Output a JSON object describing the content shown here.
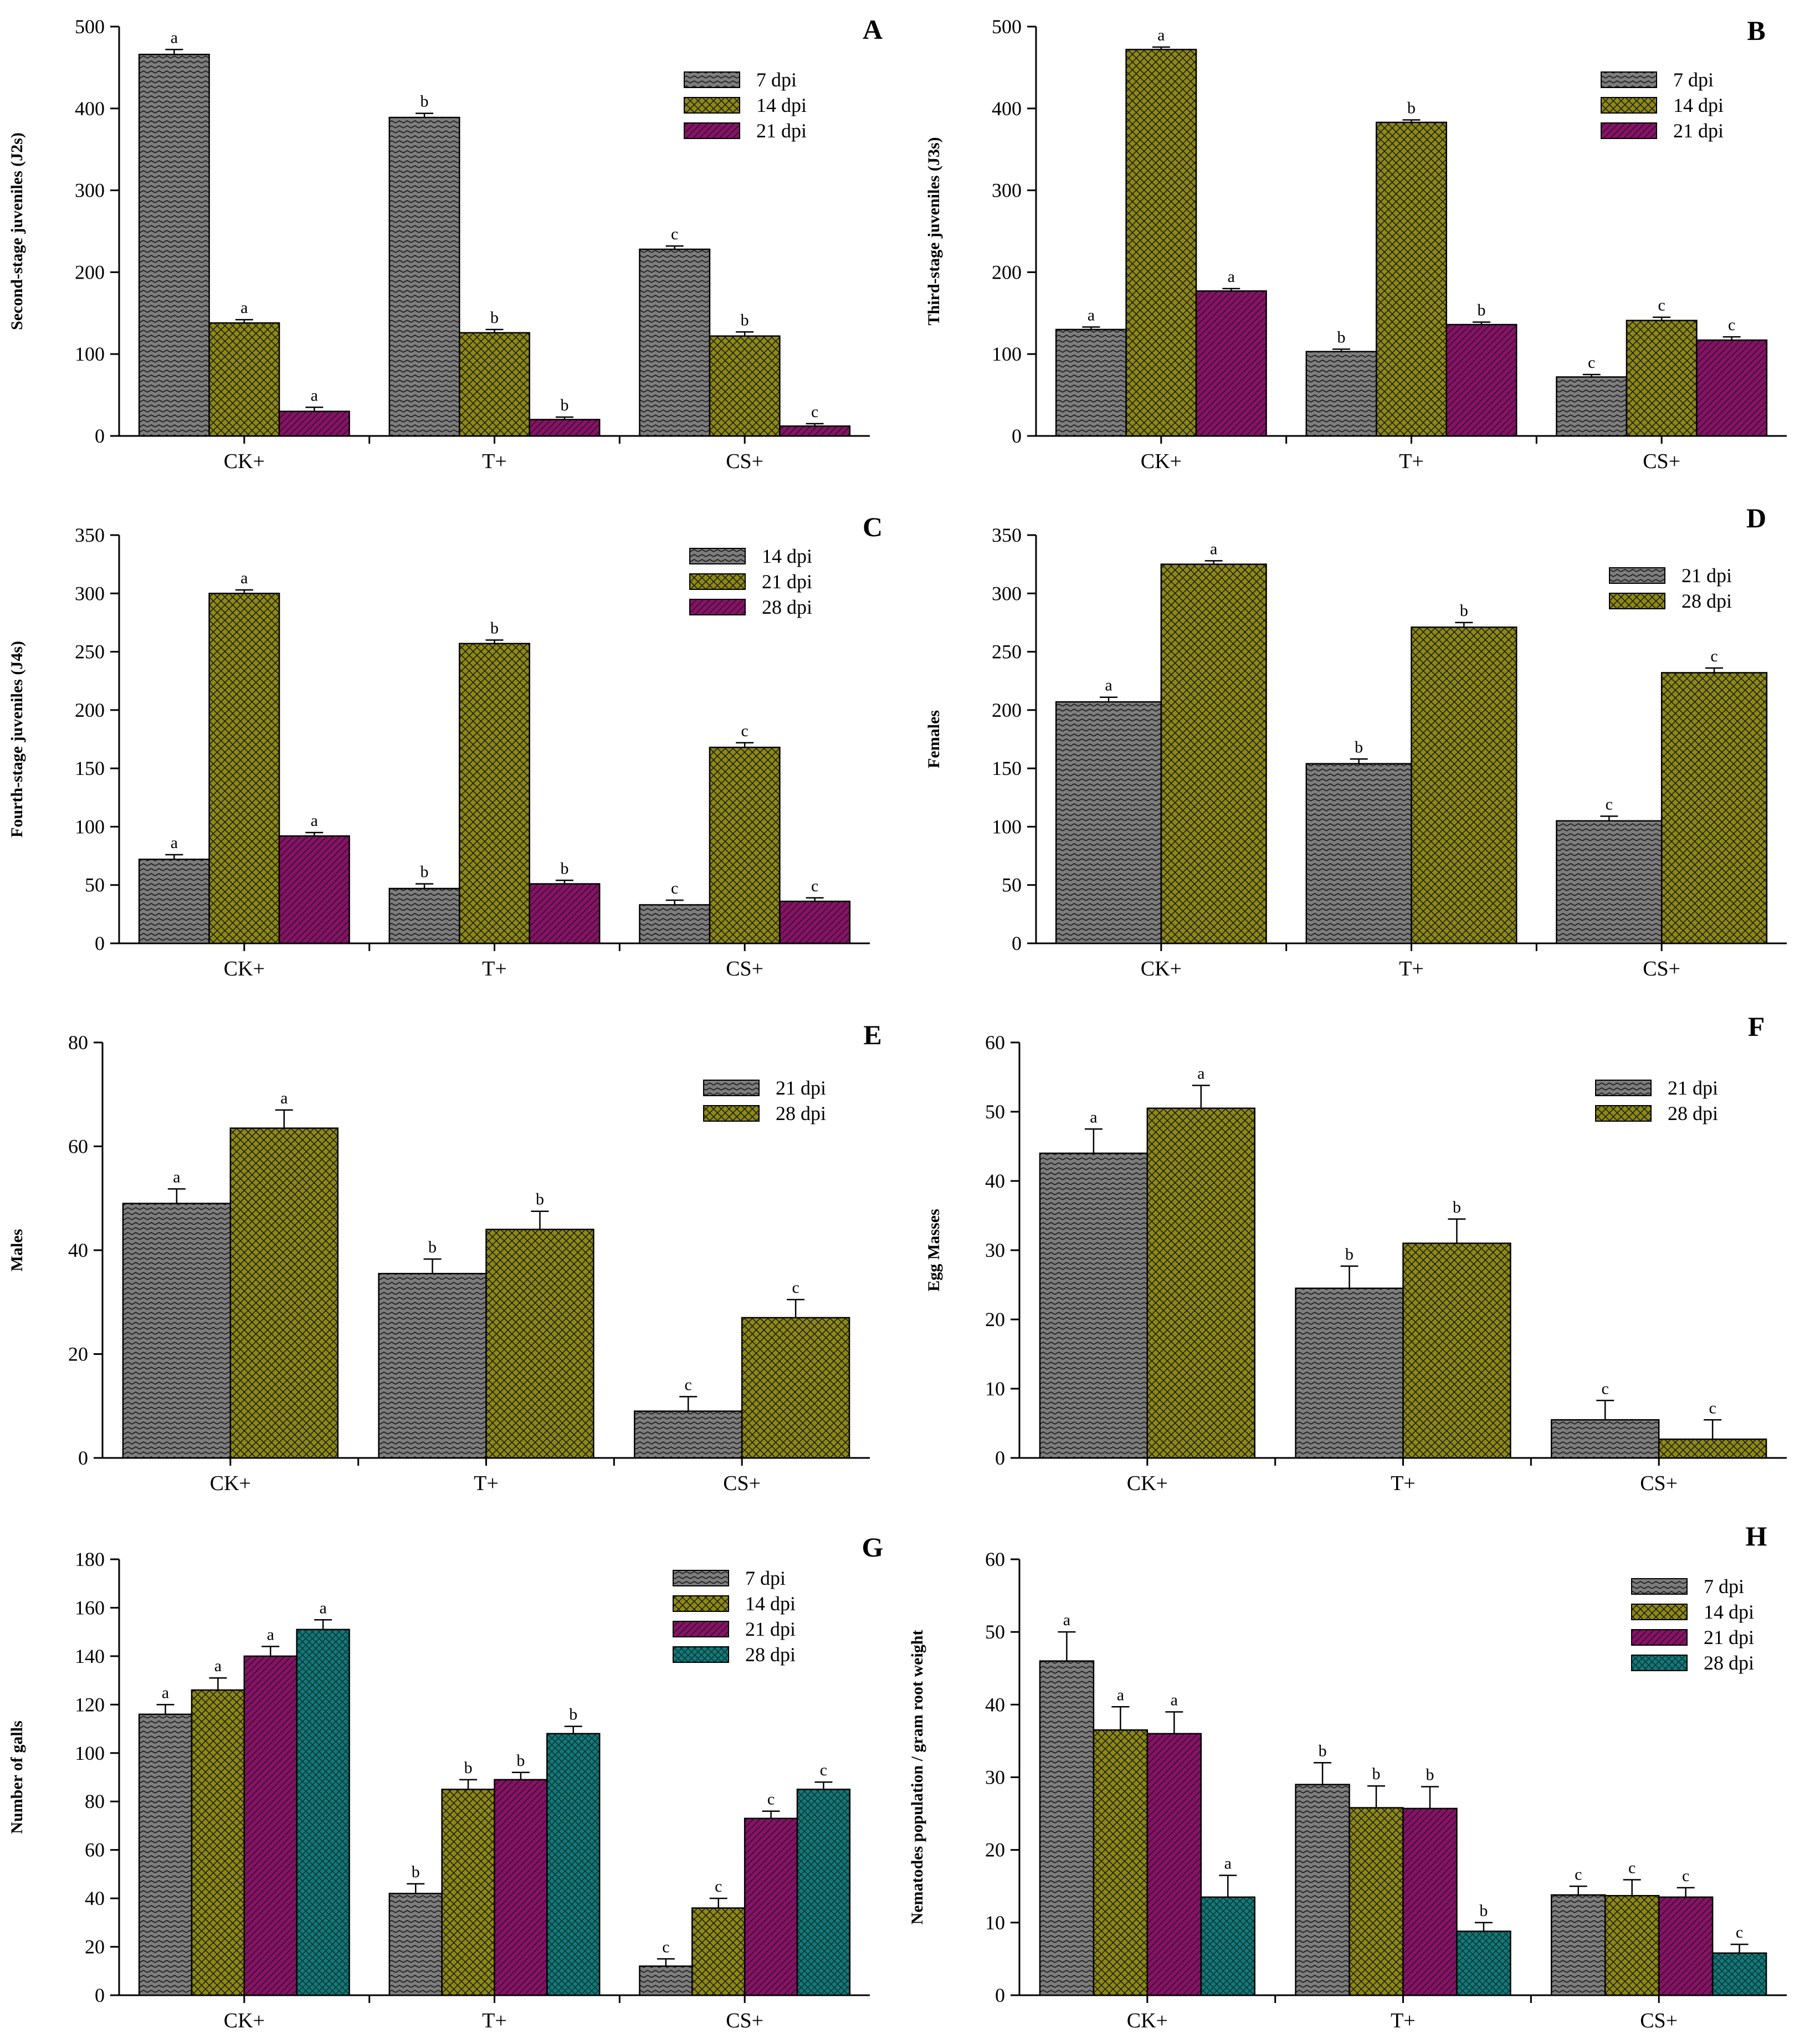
{
  "colors": {
    "gray_fill": "#7d7d7d",
    "olive_fill": "#8e8a12",
    "magenta_fill": "#8a1068",
    "teal_fill": "#117a7a",
    "stroke": "#000000"
  },
  "chart_data": [
    {
      "type": "bar",
      "panel_label": "A",
      "ylabel": "Second-stage juveniles (J2s)",
      "ylim": [
        0,
        500
      ],
      "yticks": [
        "0",
        "100",
        "200",
        "300",
        "400",
        "500"
      ],
      "categories": [
        "CK+",
        "T+",
        "CS+"
      ],
      "legend_position": "top-right",
      "series": [
        {
          "name": "7 dpi",
          "pattern": "zigzag",
          "color": "gray",
          "values": [
            466,
            389,
            228
          ],
          "errors": [
            6,
            5,
            4
          ],
          "letters": [
            "a",
            "b",
            "c"
          ]
        },
        {
          "name": "14 dpi",
          "pattern": "crosshatch",
          "color": "olive",
          "values": [
            138,
            126,
            122
          ],
          "errors": [
            4,
            4,
            5
          ],
          "letters": [
            "a",
            "b",
            "b"
          ]
        },
        {
          "name": "21 dpi",
          "pattern": "diagonal",
          "color": "magenta",
          "values": [
            30,
            20,
            12
          ],
          "errors": [
            5,
            3,
            3
          ],
          "letters": [
            "a",
            "b",
            "c"
          ]
        }
      ]
    },
    {
      "type": "bar",
      "panel_label": "B",
      "ylabel": "Third-stage juveniles (J3s)",
      "ylim": [
        0,
        500
      ],
      "yticks": [
        "0",
        "100",
        "200",
        "300",
        "400",
        "500"
      ],
      "categories": [
        "CK+",
        "T+",
        "CS+"
      ],
      "legend_position": "top-right",
      "series": [
        {
          "name": "7 dpi",
          "pattern": "zigzag",
          "color": "gray",
          "values": [
            130,
            103,
            72
          ],
          "errors": [
            3,
            3,
            3
          ],
          "letters": [
            "a",
            "b",
            "c"
          ]
        },
        {
          "name": "14 dpi",
          "pattern": "crosshatch",
          "color": "olive",
          "values": [
            472,
            383,
            141
          ],
          "errors": [
            3,
            3,
            4
          ],
          "letters": [
            "a",
            "b",
            "c"
          ]
        },
        {
          "name": "21 dpi",
          "pattern": "diagonal",
          "color": "magenta",
          "values": [
            177,
            136,
            117
          ],
          "errors": [
            3,
            3,
            4
          ],
          "letters": [
            "a",
            "b",
            "c"
          ]
        }
      ]
    },
    {
      "type": "bar",
      "panel_label": "C",
      "ylabel": "Fourth-stage juveniles (J4s)",
      "ylim": [
        0,
        350
      ],
      "yticks": [
        "0",
        "50",
        "100",
        "150",
        "200",
        "250",
        "300",
        "350"
      ],
      "categories": [
        "CK+",
        "T+",
        "CS+"
      ],
      "legend_position": "top-right",
      "series": [
        {
          "name": "14 dpi",
          "pattern": "zigzag",
          "color": "gray",
          "values": [
            72,
            47,
            33
          ],
          "errors": [
            4,
            4,
            4
          ],
          "letters": [
            "a",
            "b",
            "c"
          ]
        },
        {
          "name": "21 dpi",
          "pattern": "crosshatch",
          "color": "olive",
          "values": [
            300,
            257,
            168
          ],
          "errors": [
            3,
            3,
            4
          ],
          "letters": [
            "a",
            "b",
            "c"
          ]
        },
        {
          "name": "28 dpi",
          "pattern": "diagonal",
          "color": "magenta",
          "values": [
            92,
            51,
            36
          ],
          "errors": [
            3,
            3,
            3
          ],
          "letters": [
            "a",
            "b",
            "c"
          ]
        }
      ]
    },
    {
      "type": "bar",
      "panel_label": "D",
      "ylabel": "Females",
      "ylim": [
        0,
        350
      ],
      "yticks": [
        "0",
        "50",
        "100",
        "150",
        "200",
        "250",
        "300",
        "350"
      ],
      "categories": [
        "CK+",
        "T+",
        "CS+"
      ],
      "legend_position": "top-right",
      "series": [
        {
          "name": "21 dpi",
          "pattern": "zigzag",
          "color": "gray",
          "values": [
            207,
            154,
            105
          ],
          "errors": [
            4,
            4,
            4
          ],
          "letters": [
            "a",
            "b",
            "c"
          ]
        },
        {
          "name": "28 dpi",
          "pattern": "crosshatch",
          "color": "olive",
          "values": [
            325,
            271,
            232
          ],
          "errors": [
            3,
            4,
            4
          ],
          "letters": [
            "a",
            "b",
            "c"
          ]
        }
      ]
    },
    {
      "type": "bar",
      "panel_label": "E",
      "ylabel": "Males",
      "ylim": [
        0,
        80
      ],
      "yticks": [
        "0",
        "20",
        "40",
        "60",
        "80"
      ],
      "categories": [
        "CK+",
        "T+",
        "CS+"
      ],
      "legend_position": "top-right",
      "series": [
        {
          "name": "21 dpi",
          "pattern": "zigzag",
          "color": "gray",
          "values": [
            49,
            35.5,
            9
          ],
          "errors": [
            2.8,
            2.8,
            2.8
          ],
          "letters": [
            "a",
            "b",
            "c"
          ]
        },
        {
          "name": "28 dpi",
          "pattern": "crosshatch",
          "color": "olive",
          "values": [
            63.5,
            44,
            27
          ],
          "errors": [
            3.5,
            3.5,
            3.5
          ],
          "letters": [
            "a",
            "b",
            "c"
          ]
        }
      ]
    },
    {
      "type": "bar",
      "panel_label": "F",
      "ylabel": "Egg Masses",
      "ylim": [
        0,
        60
      ],
      "yticks": [
        "0",
        "10",
        "20",
        "30",
        "40",
        "50",
        "60"
      ],
      "categories": [
        "CK+",
        "T+",
        "CS+"
      ],
      "legend_position": "top-right",
      "series": [
        {
          "name": "21 dpi",
          "pattern": "zigzag",
          "color": "gray",
          "values": [
            44,
            24.5,
            5.5
          ],
          "errors": [
            3.5,
            3.2,
            2.8
          ],
          "letters": [
            "a",
            "b",
            "c"
          ]
        },
        {
          "name": "28 dpi",
          "pattern": "crosshatch",
          "color": "olive",
          "values": [
            50.5,
            31,
            2.7
          ],
          "errors": [
            3.3,
            3.5,
            2.8
          ],
          "letters": [
            "a",
            "b",
            "c"
          ]
        }
      ]
    },
    {
      "type": "bar",
      "panel_label": "G",
      "ylabel": "Number of galls",
      "ylim": [
        0,
        180
      ],
      "yticks": [
        "0",
        "20",
        "40",
        "60",
        "80",
        "100",
        "120",
        "140",
        "160",
        "180"
      ],
      "categories": [
        "CK+",
        "T+",
        "CS+"
      ],
      "legend_position": "top-right",
      "series": [
        {
          "name": "7 dpi",
          "pattern": "zigzag",
          "color": "gray",
          "values": [
            116,
            42,
            12
          ],
          "errors": [
            4,
            4,
            3
          ],
          "letters": [
            "a",
            "b",
            "c"
          ]
        },
        {
          "name": "14 dpi",
          "pattern": "crosshatch",
          "color": "olive",
          "values": [
            126,
            85,
            36
          ],
          "errors": [
            5,
            4,
            4
          ],
          "letters": [
            "a",
            "b",
            "c"
          ]
        },
        {
          "name": "21 dpi",
          "pattern": "diagonal",
          "color": "magenta",
          "values": [
            140,
            89,
            73
          ],
          "errors": [
            4,
            3,
            3
          ],
          "letters": [
            "a",
            "b",
            "c"
          ]
        },
        {
          "name": "28 dpi",
          "pattern": "teal",
          "color": "teal",
          "values": [
            151,
            108,
            85
          ],
          "errors": [
            4,
            3,
            3
          ],
          "letters": [
            "a",
            "b",
            "c"
          ]
        }
      ]
    },
    {
      "type": "bar",
      "panel_label": "H",
      "ylabel": "Nematodes population / gram root weight",
      "ylim": [
        0,
        60
      ],
      "yticks": [
        "0",
        "10",
        "20",
        "30",
        "40",
        "50",
        "60"
      ],
      "categories": [
        "CK+",
        "T+",
        "CS+"
      ],
      "legend_position": "top-right",
      "series": [
        {
          "name": "7 dpi",
          "pattern": "zigzag",
          "color": "gray",
          "values": [
            46,
            29,
            13.8
          ],
          "errors": [
            4,
            3,
            1.2
          ],
          "letters": [
            "a",
            "b",
            "c"
          ]
        },
        {
          "name": "14 dpi",
          "pattern": "crosshatch",
          "color": "olive",
          "values": [
            36.5,
            25.8,
            13.7
          ],
          "errors": [
            3.2,
            3,
            2.2
          ],
          "letters": [
            "a",
            "b",
            "c"
          ]
        },
        {
          "name": "21 dpi",
          "pattern": "diagonal",
          "color": "magenta",
          "values": [
            36,
            25.7,
            13.5
          ],
          "errors": [
            3,
            3,
            1.3
          ],
          "letters": [
            "a",
            "b",
            "c"
          ]
        },
        {
          "name": "28 dpi",
          "pattern": "teal",
          "color": "teal",
          "values": [
            13.5,
            8.8,
            5.8
          ],
          "errors": [
            3,
            1.2,
            1.2
          ],
          "letters": [
            "a",
            "b",
            "c"
          ]
        }
      ]
    }
  ]
}
